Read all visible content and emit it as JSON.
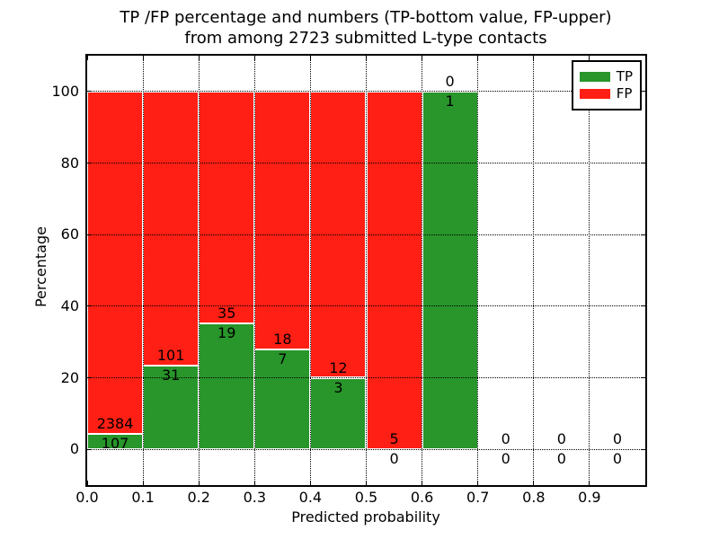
{
  "figure": {
    "title_line1": "TP /FP percentage and numbers (TP-bottom value, FP-upper)",
    "title_line2": "from among 2723 submitted L-type contacts",
    "xlabel": "Predicted probability",
    "ylabel": "Percentage"
  },
  "legend": {
    "items": [
      {
        "label": "TP",
        "color": "#28962a"
      },
      {
        "label": "FP",
        "color": "#ff1f14"
      }
    ],
    "position": "upper right"
  },
  "chart_data": {
    "type": "bar",
    "stacked": true,
    "title": "TP /FP percentage and numbers (TP-bottom value, FP-upper) from among 2723 submitted L-type contacts",
    "xlabel": "Predicted probability",
    "ylabel": "Percentage",
    "total_contacts": 2723,
    "xlim": [
      0.0,
      1.0
    ],
    "ylim": [
      -10,
      110
    ],
    "bin_width": 0.1,
    "bin_starts": [
      0.0,
      0.1,
      0.2,
      0.3,
      0.4,
      0.5,
      0.6,
      0.7,
      0.8,
      0.9
    ],
    "xtick_labels": [
      "0.0",
      "0.1",
      "0.2",
      "0.3",
      "0.4",
      "0.5",
      "0.6",
      "0.7",
      "0.8",
      "0.9"
    ],
    "ytick_values": [
      0,
      20,
      40,
      60,
      80,
      100
    ],
    "grid": "dotted",
    "series": [
      {
        "name": "TP",
        "color": "#28962a",
        "counts": [
          107,
          31,
          19,
          7,
          3,
          0,
          1,
          0,
          0,
          0
        ],
        "percent": [
          4.3,
          23.48,
          35.19,
          28.0,
          20.0,
          0.0,
          100.0,
          0.0,
          0.0,
          0.0
        ]
      },
      {
        "name": "FP",
        "color": "#ff1f14",
        "counts": [
          2384,
          101,
          35,
          18,
          12,
          5,
          0,
          0,
          0,
          0
        ],
        "percent": [
          95.7,
          76.52,
          64.81,
          72.0,
          80.0,
          100.0,
          0.0,
          0.0,
          0.0,
          0.0
        ]
      }
    ],
    "label_rule": "FP count shown above TP/FP boundary, TP count shown below boundary"
  }
}
